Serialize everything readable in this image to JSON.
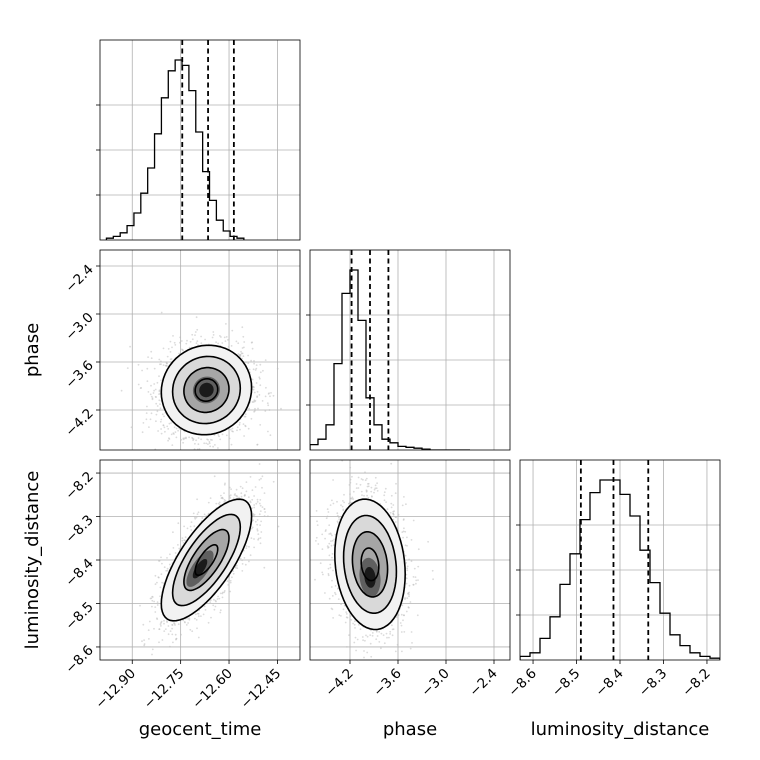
{
  "chart_data": {
    "type": "corner",
    "parameters": [
      {
        "name": "geocent_time",
        "label": "geocent_time",
        "range": [
          -13.0,
          -12.38
        ],
        "ticks": [
          -12.9,
          -12.75,
          -12.6,
          -12.45
        ],
        "tick_labels": [
          "−12.90",
          "−12.75",
          "−12.60",
          "−12.45"
        ],
        "quantiles": [
          -12.745,
          -12.665,
          -12.585
        ],
        "hist": {
          "edges_start": -12.98,
          "bin_width": 0.0213,
          "counts": [
            0.01,
            0.02,
            0.04,
            0.08,
            0.15,
            0.26,
            0.4,
            0.59,
            0.79,
            0.94,
            1.0,
            0.97,
            0.83,
            0.6,
            0.38,
            0.22,
            0.11,
            0.05,
            0.02,
            0.01
          ]
        }
      },
      {
        "name": "phase",
        "label": "phase",
        "range": [
          -4.7,
          -2.2
        ],
        "ticks": [
          -4.2,
          -3.6,
          -3.0,
          -2.4
        ],
        "tick_labels": [
          "−4.2",
          "−3.6",
          "−3.0",
          "−2.4"
        ],
        "quantiles": [
          -4.18,
          -3.95,
          -3.72
        ],
        "hist": {
          "edges_start": -4.7,
          "bin_width": 0.1,
          "counts": [
            0.03,
            0.06,
            0.14,
            0.48,
            0.87,
            1.0,
            0.72,
            0.29,
            0.14,
            0.06,
            0.04,
            0.02,
            0.015,
            0.01,
            0.005,
            0.0,
            0.0,
            0.0,
            0.0,
            0.0
          ]
        }
      },
      {
        "name": "luminosity_distance",
        "label": "luminosity_distance",
        "range": [
          -8.63,
          -8.17
        ],
        "ticks": [
          -8.6,
          -8.5,
          -8.4,
          -8.3,
          -8.2
        ],
        "tick_labels": [
          "−8.6",
          "−8.5",
          "−8.4",
          "−8.3",
          "−8.2"
        ],
        "quantiles": [
          -8.49,
          -8.415,
          -8.335
        ],
        "hist": {
          "edges_start": -8.63,
          "bin_width": 0.023,
          "counts": [
            0.02,
            0.04,
            0.12,
            0.24,
            0.42,
            0.59,
            0.78,
            0.93,
            1.0,
            1.0,
            0.92,
            0.8,
            0.61,
            0.43,
            0.26,
            0.14,
            0.08,
            0.04,
            0.02,
            0.01
          ]
        }
      }
    ],
    "pairs": [
      {
        "x": "geocent_time",
        "y": "phase",
        "center": [
          -12.67,
          -3.95
        ],
        "sd": [
          0.07,
          0.28
        ],
        "rho": 0.05,
        "peak_offset": [
          0.0,
          0.0
        ]
      },
      {
        "x": "geocent_time",
        "y": "luminosity_distance",
        "center": [
          -12.67,
          -8.4
        ],
        "sd": [
          0.07,
          0.07
        ],
        "rho": 0.72,
        "peak_offset": [
          -0.02,
          -0.02
        ]
      },
      {
        "x": "phase",
        "y": "luminosity_distance",
        "center": [
          -3.95,
          -8.41
        ],
        "sd": [
          0.22,
          0.075
        ],
        "rho": -0.15,
        "peak_offset": [
          0.0,
          -0.03
        ]
      }
    ],
    "contour_sigma_levels": [
      0.5,
      1.0,
      1.5,
      2.0
    ],
    "grid": true
  }
}
